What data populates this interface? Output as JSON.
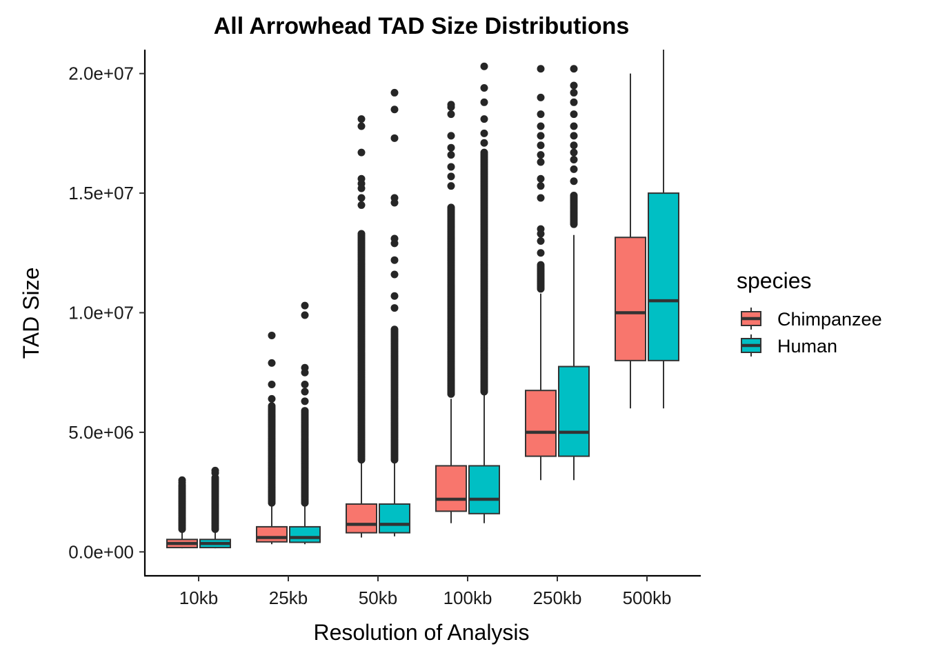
{
  "chart_data": {
    "type": "boxplot",
    "title": "All Arrowhead TAD Size Distributions",
    "xlabel": "Resolution of Analysis",
    "ylabel": "TAD Size",
    "ylim": [
      -1000000,
      21000000
    ],
    "yticks": [
      0,
      5000000,
      10000000,
      15000000,
      20000000
    ],
    "ytick_labels": [
      "0.0e+00",
      "5.0e+06",
      "1.0e+07",
      "1.5e+07",
      "2.0e+07"
    ],
    "categories": [
      "10kb",
      "25kb",
      "50kb",
      "100kb",
      "250kb",
      "500kb"
    ],
    "legend": {
      "title": "species",
      "position": "right"
    },
    "series": [
      {
        "name": "Chimpanzee",
        "color": "#F8766D",
        "boxes": [
          {
            "lo": 150000,
            "q1": 180000,
            "med": 350000,
            "q3": 520000,
            "hi": 900000,
            "outliers": {
              "dense_from": 950000,
              "dense_to": 2800000,
              "sparse": [
                2900000,
                3000000
              ]
            }
          },
          {
            "lo": 320000,
            "q1": 420000,
            "med": 600000,
            "q3": 1050000,
            "hi": 2000000,
            "outliers": {
              "dense_from": 2050000,
              "dense_to": 6100000,
              "sparse": [
                6400000,
                7000000,
                7900000,
                9050000
              ]
            }
          },
          {
            "lo": 600000,
            "q1": 800000,
            "med": 1150000,
            "q3": 2000000,
            "hi": 3800000,
            "outliers": {
              "dense_from": 3850000,
              "dense_to": 13300000,
              "sparse": [
                14500000,
                14800000,
                15200000,
                15400000,
                15600000,
                16700000,
                17800000,
                18100000
              ]
            }
          },
          {
            "lo": 1200000,
            "q1": 1700000,
            "med": 2200000,
            "q3": 3600000,
            "hi": 6400000,
            "outliers": {
              "dense_from": 6600000,
              "dense_to": 14400000,
              "sparse": [
                15300000,
                15700000,
                16100000,
                16600000,
                16900000,
                17400000,
                18300000,
                18600000,
                18700000
              ]
            }
          },
          {
            "lo": 3000000,
            "q1": 4000000,
            "med": 5000000,
            "q3": 6750000,
            "hi": 10800000,
            "outliers": {
              "dense_from": 11000000,
              "dense_to": 12000000,
              "sparse": [
                12500000,
                13000000,
                13300000,
                13500000,
                14800000,
                15300000,
                15600000,
                16300000,
                16600000,
                17000000,
                17400000,
                17800000,
                18300000,
                19000000,
                20200000
              ]
            }
          },
          {
            "lo": 6000000,
            "q1": 8000000,
            "med": 10000000,
            "q3": 13150000,
            "hi": 20000000,
            "outliers": {
              "dense_from": null,
              "dense_to": null,
              "sparse": []
            }
          }
        ]
      },
      {
        "name": "Human",
        "color": "#00BFC4",
        "boxes": [
          {
            "lo": 150000,
            "q1": 180000,
            "med": 350000,
            "q3": 520000,
            "hi": 900000,
            "outliers": {
              "dense_from": 950000,
              "dense_to": 3100000,
              "sparse": [
                3300000,
                3400000
              ]
            }
          },
          {
            "lo": 320000,
            "q1": 400000,
            "med": 600000,
            "q3": 1050000,
            "hi": 2000000,
            "outliers": {
              "dense_from": 2050000,
              "dense_to": 5900000,
              "sparse": [
                6300000,
                6700000,
                7000000,
                7500000,
                7700000,
                9900000,
                10300000
              ]
            }
          },
          {
            "lo": 650000,
            "q1": 800000,
            "med": 1150000,
            "q3": 2000000,
            "hi": 3800000,
            "outliers": {
              "dense_from": 3850000,
              "dense_to": 9300000,
              "sparse": [
                10200000,
                10700000,
                11600000,
                12200000,
                12900000,
                13100000,
                14600000,
                14800000,
                17300000,
                18500000,
                19200000
              ]
            }
          },
          {
            "lo": 1200000,
            "q1": 1600000,
            "med": 2200000,
            "q3": 3600000,
            "hi": 6600000,
            "outliers": {
              "dense_from": 6700000,
              "dense_to": 16700000,
              "sparse": [
                17100000,
                17500000,
                18100000,
                18800000,
                19400000,
                20300000
              ]
            }
          },
          {
            "lo": 3000000,
            "q1": 4000000,
            "med": 5000000,
            "q3": 7750000,
            "hi": 13250000,
            "outliers": {
              "dense_from": 13700000,
              "dense_to": 14900000,
              "sparse": [
                15500000,
                16000000,
                16400000,
                16700000,
                17000000,
                17400000,
                17800000,
                18300000,
                18800000,
                19200000,
                19500000,
                20200000
              ]
            }
          },
          {
            "lo": 6000000,
            "q1": 8000000,
            "med": 10500000,
            "q3": 15000000,
            "hi": 21000000,
            "outliers": {
              "dense_from": null,
              "dense_to": null,
              "sparse": []
            }
          }
        ]
      }
    ]
  }
}
